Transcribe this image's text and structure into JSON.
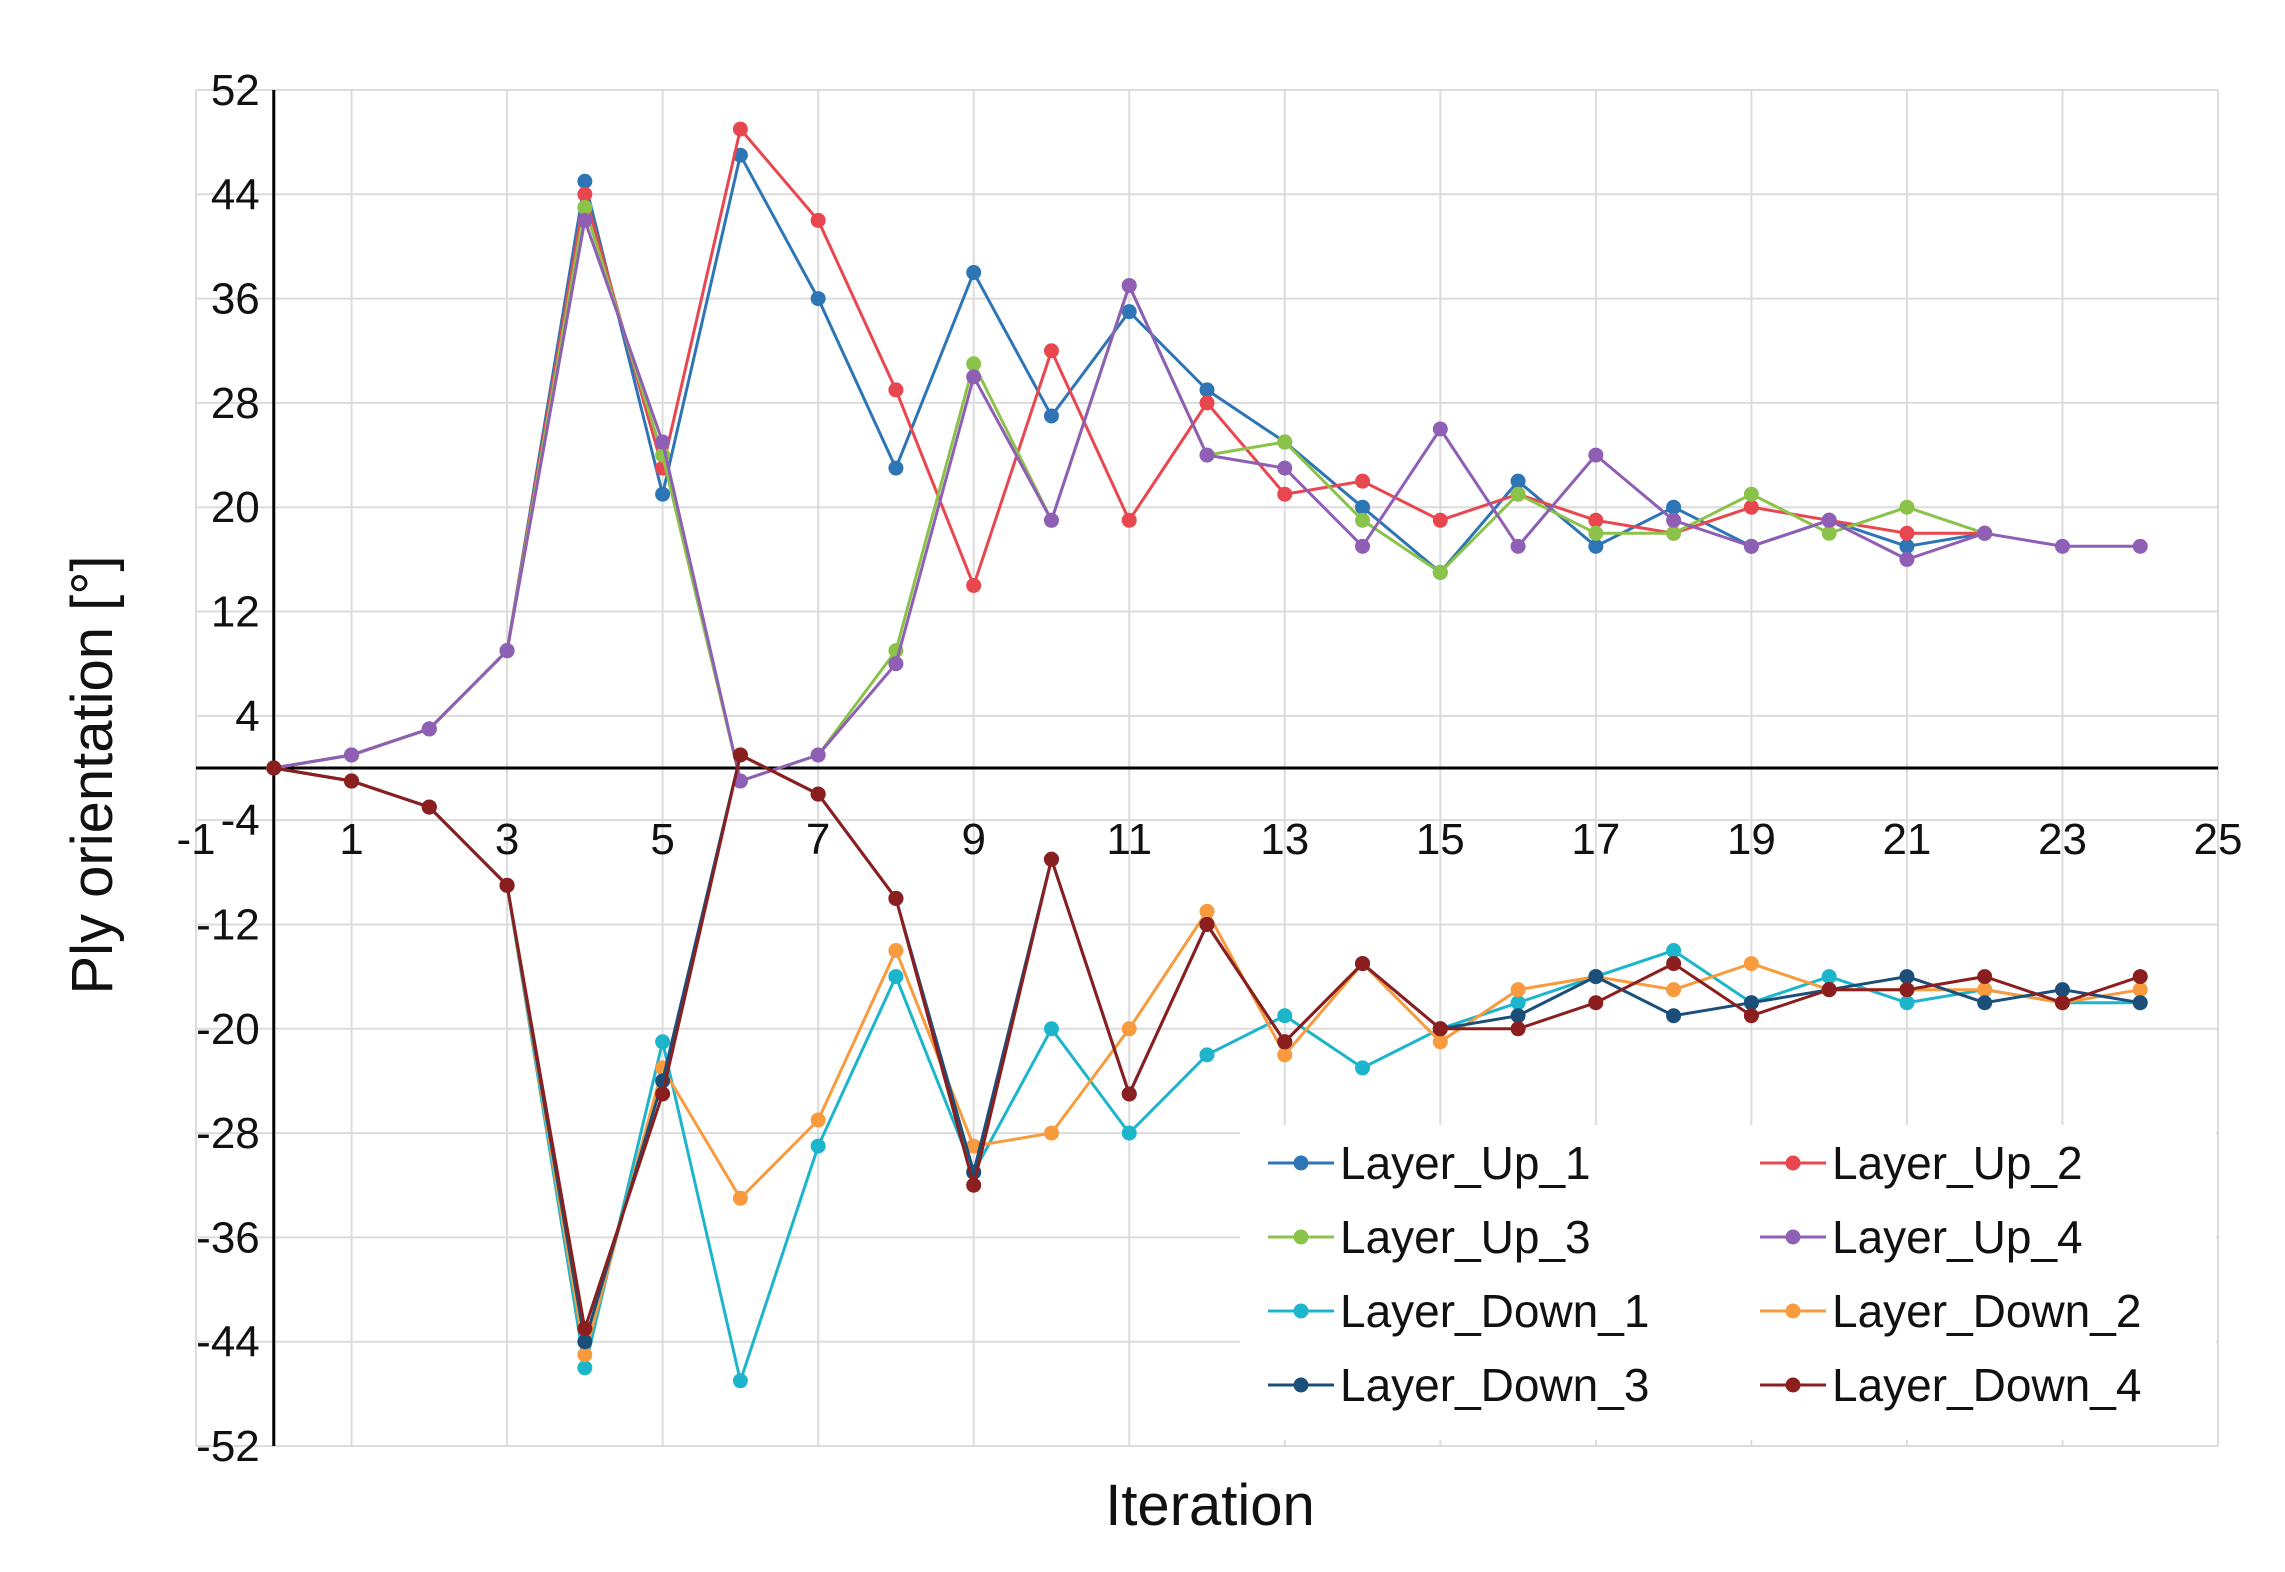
{
  "chart_data": {
    "type": "line",
    "title": "",
    "xlabel": "Iteration",
    "ylabel": "Ply orientation [°]",
    "xlim": [
      -1,
      25
    ],
    "ylim": [
      -52,
      52
    ],
    "xticks": [
      -1,
      1,
      3,
      5,
      7,
      9,
      11,
      13,
      15,
      17,
      19,
      21,
      23,
      25
    ],
    "yticks": [
      52,
      44,
      36,
      28,
      20,
      12,
      4,
      -4,
      -12,
      -20,
      -28,
      -36,
      -44,
      -52
    ],
    "grid": true,
    "legend_position": "bottom-right",
    "series": [
      {
        "name": "Layer_Up_1",
        "color": "#2E75B6",
        "x": [
          0,
          1,
          2,
          3,
          4,
          5,
          6,
          7,
          8,
          9,
          10,
          11,
          12,
          13,
          14,
          15,
          16,
          17,
          18,
          19,
          20,
          21,
          22
        ],
        "values": [
          0,
          1,
          3,
          9,
          45,
          21,
          47,
          36,
          23,
          38,
          27,
          35,
          29,
          25,
          20,
          15,
          22,
          17,
          20,
          17,
          19,
          17,
          18
        ]
      },
      {
        "name": "Layer_Up_2",
        "color": "#E8474F",
        "x": [
          0,
          1,
          2,
          3,
          4,
          5,
          6,
          7,
          8,
          9,
          10,
          11,
          12,
          13,
          14,
          15,
          16,
          17,
          18,
          19,
          20,
          21,
          22
        ],
        "values": [
          0,
          1,
          3,
          9,
          44,
          23,
          49,
          42,
          29,
          14,
          32,
          19,
          28,
          21,
          22,
          19,
          21,
          19,
          18,
          20,
          19,
          18,
          18
        ]
      },
      {
        "name": "Layer_Up_3",
        "color": "#8BC34A",
        "x": [
          0,
          1,
          2,
          3,
          4,
          5,
          6,
          7,
          8,
          9,
          10,
          11,
          12,
          13,
          14,
          15,
          16,
          17,
          18,
          19,
          20,
          21,
          22
        ],
        "values": [
          0,
          1,
          3,
          9,
          43,
          24,
          -1,
          1,
          9,
          31,
          19,
          37,
          24,
          25,
          19,
          15,
          21,
          18,
          18,
          21,
          18,
          20,
          18
        ]
      },
      {
        "name": "Layer_Up_4",
        "color": "#8E5FB5",
        "x": [
          0,
          1,
          2,
          3,
          4,
          5,
          6,
          7,
          8,
          9,
          10,
          11,
          12,
          13,
          14,
          15,
          16,
          17,
          18,
          19,
          20,
          21,
          22,
          23,
          24
        ],
        "values": [
          0,
          1,
          3,
          9,
          42,
          25,
          -1,
          1,
          8,
          30,
          19,
          37,
          24,
          23,
          17,
          26,
          17,
          24,
          19,
          17,
          19,
          16,
          18,
          17,
          17
        ]
      },
      {
        "name": "Layer_Down_1",
        "color": "#1CB5CC",
        "x": [
          0,
          1,
          2,
          3,
          4,
          5,
          6,
          7,
          8,
          9,
          10,
          11,
          12,
          13,
          14,
          15,
          16,
          17,
          18,
          19,
          20,
          21,
          22,
          23,
          24
        ],
        "values": [
          0,
          -1,
          -3,
          -9,
          -46,
          -21,
          -47,
          -29,
          -16,
          -31,
          -20,
          -28,
          -22,
          -19,
          -23,
          -20,
          -18,
          -16,
          -14,
          -18,
          -16,
          -18,
          -17,
          -18,
          -18
        ]
      },
      {
        "name": "Layer_Down_2",
        "color": "#F79B3E",
        "x": [
          0,
          1,
          2,
          3,
          4,
          5,
          6,
          7,
          8,
          9,
          10,
          11,
          12,
          13,
          14,
          15,
          16,
          17,
          18,
          19,
          20,
          21,
          22,
          23,
          24
        ],
        "values": [
          0,
          -1,
          -3,
          -9,
          -45,
          -23,
          -33,
          -27,
          -14,
          -29,
          -28,
          -20,
          -11,
          -22,
          -15,
          -21,
          -17,
          -16,
          -17,
          -15,
          -17,
          -17,
          -17,
          -18,
          -17
        ]
      },
      {
        "name": "Layer_Down_3",
        "color": "#1B4F7A",
        "x": [
          0,
          1,
          2,
          3,
          4,
          5,
          6,
          7,
          8,
          9,
          10,
          11,
          12,
          13,
          14,
          15,
          16,
          17,
          18,
          19,
          20,
          21,
          22,
          23,
          24
        ],
        "values": [
          0,
          -1,
          -3,
          -9,
          -44,
          -24,
          1,
          -2,
          -10,
          -31,
          -7,
          -25,
          -12,
          -21,
          -15,
          -20,
          -19,
          -16,
          -19,
          -18,
          -17,
          -16,
          -18,
          -17,
          -18
        ]
      },
      {
        "name": "Layer_Down_4",
        "color": "#8B1E1E",
        "x": [
          0,
          1,
          2,
          3,
          4,
          5,
          6,
          7,
          8,
          9,
          10,
          11,
          12,
          13,
          14,
          15,
          16,
          17,
          18,
          19,
          20,
          21,
          22,
          23,
          24
        ],
        "values": [
          0,
          -1,
          -3,
          -9,
          -43,
          -25,
          1,
          -2,
          -10,
          -32,
          -7,
          -25,
          -12,
          -21,
          -15,
          -20,
          -20,
          -18,
          -15,
          -19,
          -17,
          -17,
          -16,
          -18,
          -16
        ]
      }
    ]
  }
}
